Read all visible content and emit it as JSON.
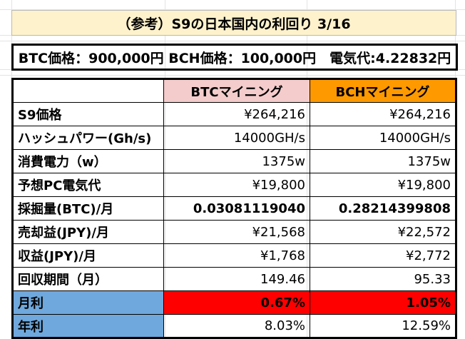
{
  "title": "（参考）S9の日本国内の利回り 3/16",
  "info": "BTC価格：900,000円 BCH価格：100,000円　電気代:4.22832円",
  "headers": {
    "btc": "BTCマイニング",
    "bch": "BCHマイニング"
  },
  "rows": [
    {
      "label": "S9価格",
      "btc": "¥264,216",
      "bch": "¥264,216"
    },
    {
      "label": "ハッシュパワー(Gh/s)",
      "btc": "14000GH/s",
      "bch": "14000GH/s"
    },
    {
      "label": "消費電力（w）",
      "btc": "1375w",
      "bch": "1375w"
    },
    {
      "label": "予想PC電気代",
      "btc": "¥19,800",
      "bch": "¥19,800"
    },
    {
      "label": "採掘量(BTC)/月",
      "btc": "0.03081119040",
      "bch": "0.28214399808"
    },
    {
      "label": "売却益(JPY)/月",
      "btc": "¥21,568",
      "bch": "¥22,572"
    },
    {
      "label": "収益(JPY)/月",
      "btc": "¥1,768",
      "bch": "¥2,772"
    },
    {
      "label": "回収期間（月）",
      "btc": "149.46",
      "bch": "95.33"
    },
    {
      "label": "月利",
      "btc": "0.67%",
      "bch": "1.05%"
    },
    {
      "label": "年利",
      "btc": "8.03%",
      "bch": "12.59%"
    }
  ],
  "colors": {
    "title_bg": "#fdf2cc",
    "btc_header_bg": "#f4cccc",
    "bch_header_bg": "#ff9900",
    "label_highlight_bg": "#6fa8dc",
    "monthly_value_bg": "#ff0000"
  }
}
